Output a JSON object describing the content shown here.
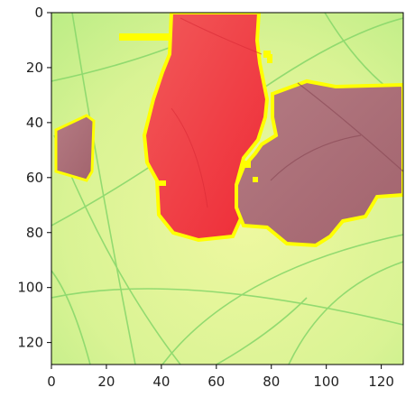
{
  "plot": {
    "x_ticks": [
      "0",
      "20",
      "40",
      "60",
      "80",
      "100",
      "120"
    ],
    "y_ticks": [
      "0",
      "20",
      "40",
      "60",
      "80",
      "100",
      "120"
    ],
    "x_range": [
      0,
      128
    ],
    "y_range": [
      0,
      128
    ],
    "y_axis_inverted": true
  },
  "image_content": {
    "description": "segmentation overlay on leaf image",
    "colors": {
      "background_leaf": "#c9f08a",
      "leaf_light": "#e6f59a",
      "vein": "#7fd86a",
      "red_region": "#f03a3a",
      "red_region_light": "#f06a6a",
      "brown_region": "#b0707a",
      "brown_region_dark": "#9c5c68",
      "contour": "#ffff00"
    }
  }
}
